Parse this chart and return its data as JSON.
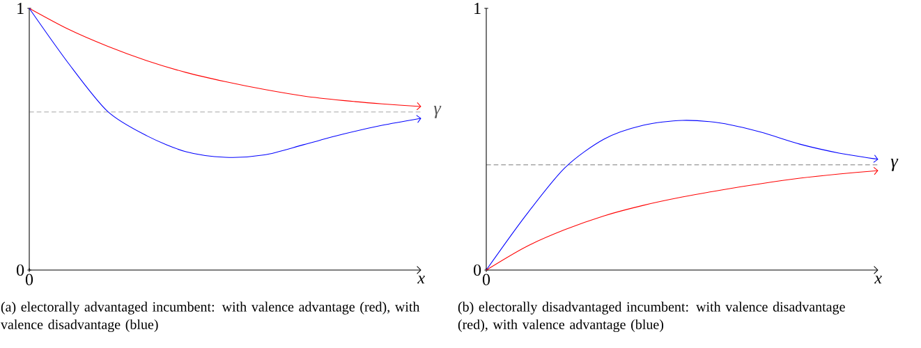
{
  "chart_data": [
    {
      "type": "line",
      "title": "(a) electorally advantaged incumbent: with valence advantage (red), with valence disadvantage (blue)",
      "xlabel": "x",
      "categories": [
        "0",
        null,
        null,
        null,
        null,
        null,
        null,
        null,
        null,
        null,
        null
      ],
      "ylim": [
        0,
        1
      ],
      "yticks": [
        0,
        1
      ],
      "series": [
        {
          "color": "#ff0000",
          "values": [
            1,
            0.92,
            0.855,
            0.8,
            0.755,
            0.72,
            0.69,
            0.665,
            0.648,
            0.635,
            0.625
          ]
        },
        {
          "color": "#0000ff",
          "values": [
            1,
            0.79,
            0.606,
            0.513,
            0.452,
            0.431,
            0.44,
            0.479,
            0.519,
            0.553,
            0.58
          ]
        }
      ],
      "ref_lines": [
        {
          "axis": "y",
          "value": 0.604,
          "label": "γ",
          "color": "#555555",
          "line_style": "dashed"
        }
      ]
    },
    {
      "type": "line",
      "title": "(b) electorally disadvantaged incumbent: with valence disadvantage (red), with valence advantage (blue)",
      "xlabel": "x",
      "categories": [
        "0",
        null,
        null,
        null,
        null,
        null,
        null,
        null,
        null,
        null,
        null
      ],
      "ylim": [
        0,
        1
      ],
      "yticks": [
        0,
        1
      ],
      "series": [
        {
          "color": "#0000ff",
          "values": [
            0,
            0.207,
            0.39,
            0.5,
            0.553,
            0.572,
            0.561,
            0.527,
            0.481,
            0.447,
            0.423
          ]
        },
        {
          "color": "#ff0000",
          "values": [
            0,
            0.088,
            0.154,
            0.207,
            0.247,
            0.279,
            0.306,
            0.33,
            0.351,
            0.367,
            0.38
          ]
        }
      ],
      "ref_lines": [
        {
          "axis": "y",
          "value": 0.402,
          "label": "γ",
          "color": "#000000",
          "line_style": "dashed"
        }
      ]
    }
  ]
}
